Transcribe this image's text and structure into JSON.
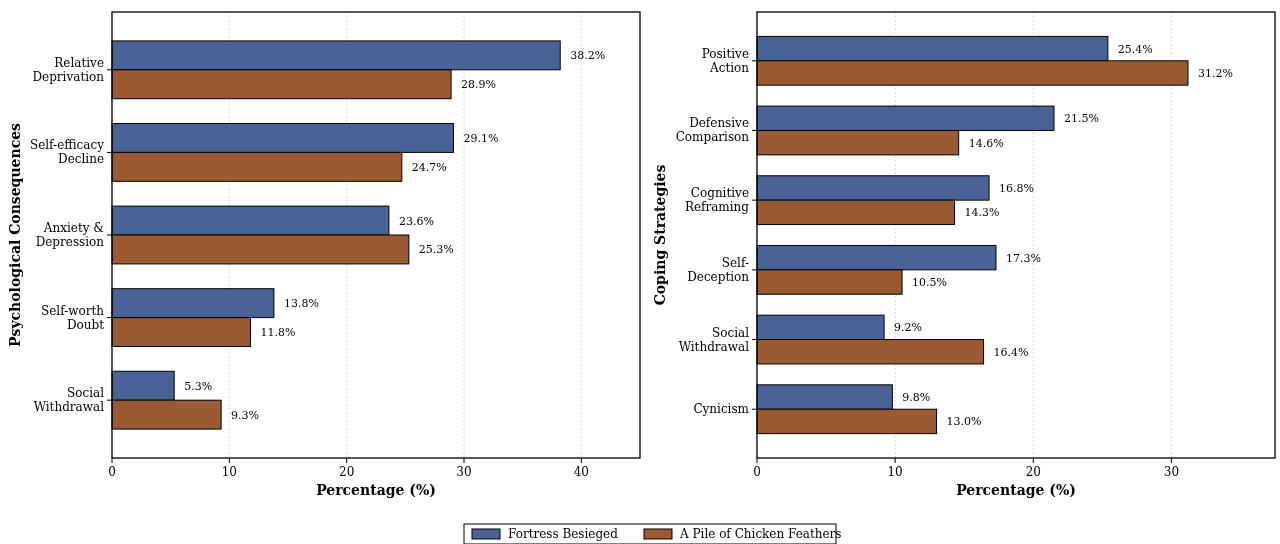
{
  "chart_data": [
    {
      "type": "bar",
      "orientation": "horizontal",
      "ylabel": "Psychological Consequences",
      "xlabel": "Percentage (%)",
      "categories": [
        "Relative\nDeprivation",
        "Self-efficacy\nDecline",
        "Anxiety &\nDepression",
        "Self-worth\nDoubt",
        "Social\nWithdrawal"
      ],
      "series": [
        {
          "name": "Fortress Besieged",
          "color": "#4a6397",
          "values": [
            38.2,
            29.1,
            23.6,
            13.8,
            5.3
          ],
          "value_labels": [
            "38.2%",
            "29.1%",
            "23.6%",
            "13.8%",
            "5.3%"
          ]
        },
        {
          "name": "A Pile of Chicken Feathers",
          "color": "#9a5b34",
          "values": [
            28.9,
            24.7,
            25.3,
            11.8,
            9.3
          ],
          "value_labels": [
            "28.9%",
            "24.7%",
            "25.3%",
            "11.8%",
            "9.3%"
          ]
        }
      ],
      "xlim": [
        0,
        45
      ],
      "xticks": [
        0,
        10,
        20,
        30,
        40
      ],
      "grid": "x",
      "legend": "bottom"
    },
    {
      "type": "bar",
      "orientation": "horizontal",
      "ylabel": "Coping Strategies",
      "xlabel": "Percentage (%)",
      "categories": [
        "Positive\nAction",
        "Defensive\nComparison",
        "Cognitive\nReframing",
        "Self-\nDeception",
        "Social\nWithdrawal",
        "Cynicism"
      ],
      "series": [
        {
          "name": "Fortress Besieged",
          "color": "#4a6397",
          "values": [
            25.4,
            21.5,
            16.8,
            17.3,
            9.2,
            9.8
          ],
          "value_labels": [
            "25.4%",
            "21.5%",
            "16.8%",
            "17.3%",
            "9.2%",
            "9.8%"
          ]
        },
        {
          "name": "A Pile of Chicken Feathers",
          "color": "#9a5b34",
          "values": [
            31.2,
            14.6,
            14.3,
            10.5,
            16.4,
            13.0
          ],
          "value_labels": [
            "31.2%",
            "14.6%",
            "14.3%",
            "10.5%",
            "16.4%",
            "13.0%"
          ]
        }
      ],
      "xlim": [
        0,
        37.5
      ],
      "xticks": [
        0,
        10,
        20,
        30
      ],
      "grid": "x",
      "legend": "bottom"
    }
  ]
}
